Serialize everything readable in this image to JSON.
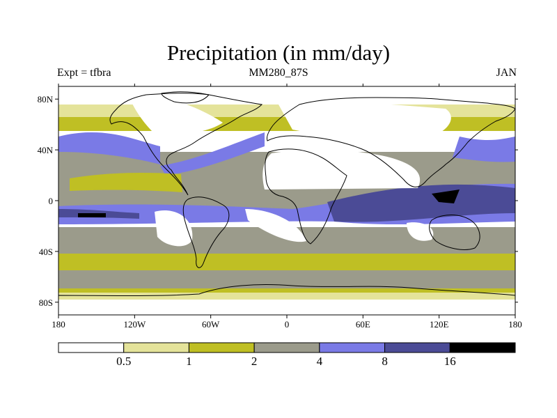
{
  "title": "Precipitation (in mm/day)",
  "subtitle_left": "Expt = tfbra",
  "subtitle_center": "MM280_87S",
  "subtitle_right": "JAN",
  "map": {
    "lon_ticks": [
      {
        "lon": -180,
        "label": "180"
      },
      {
        "lon": -120,
        "label": "120W"
      },
      {
        "lon": -60,
        "label": "60W"
      },
      {
        "lon": 0,
        "label": "0"
      },
      {
        "lon": 60,
        "label": "60E"
      },
      {
        "lon": 120,
        "label": "120E"
      },
      {
        "lon": 180,
        "label": "180"
      }
    ],
    "lat_ticks": [
      {
        "lat": 80,
        "label": "80N"
      },
      {
        "lat": 40,
        "label": "40N"
      },
      {
        "lat": 0,
        "label": "0"
      },
      {
        "lat": -40,
        "label": "40S"
      },
      {
        "lat": -80,
        "label": "80S"
      }
    ],
    "lat_range": [
      -90,
      90
    ],
    "lon_range": [
      -180,
      180
    ]
  },
  "colorbar": {
    "levels": [
      "0.5",
      "1",
      "2",
      "4",
      "8",
      "16"
    ],
    "colors": [
      "#ffffff",
      "#e4e39a",
      "#bfbf24",
      "#9b9b8b",
      "#7a7ae6",
      "#4b4b96",
      "#000000"
    ]
  }
}
